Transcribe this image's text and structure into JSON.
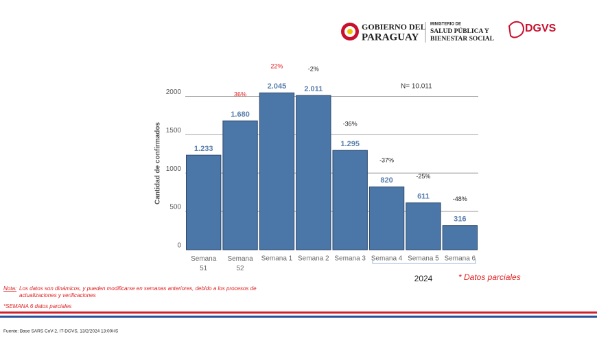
{
  "header": {
    "gov_line1": "GOBIERNO DEL",
    "gov_line2": "PARAGUAY",
    "ministry_line1": "MINISTERIO DE",
    "ministry_line2": "SALUD PÚBLICA Y",
    "ministry_line3": "BIENESTAR SOCIAL",
    "agency": "DGVS"
  },
  "chart_data": {
    "type": "bar",
    "y_label": "Cantidad de confirmados",
    "annotation": "N= 10.011",
    "categories": [
      "Semana 51",
      "Semana 52",
      "Semana 1",
      "Semana 2",
      "Semana 3",
      "Semana 4",
      "Semana 5",
      "Semana 6"
    ],
    "values": [
      1233,
      1680,
      2045,
      2011,
      1295,
      820,
      611,
      316
    ],
    "value_labels": [
      "1.233",
      "1.680",
      "2.045",
      "2.011",
      "1.295",
      "820",
      "611",
      "316"
    ],
    "change_labels": [
      null,
      "36%",
      "22%",
      "-2%",
      "-36%",
      "-37%",
      "-25%",
      "-48%"
    ],
    "change_colors": [
      null,
      "#e02020",
      "#e02020",
      "#222222",
      "#222222",
      "#222222",
      "#222222",
      "#222222"
    ],
    "color": "#4a76a8",
    "ylim": [
      0,
      2200
    ],
    "yticks": [
      0,
      500,
      1000,
      1500,
      2000
    ],
    "grid": true,
    "year_label": "2024",
    "partial_note": "* Datos parciales"
  },
  "notes": {
    "label": "Nota:",
    "text": " Los datos son dinámicos, y pueden modificarse en semanas anteriores, debido a los procesos de actualizaciones y verificaciones",
    "week_note": "*SEMANA 6 datos parciales"
  },
  "footer": {
    "source": "Fuente: Base SARS CoV-2, IT-DGVS, 13/2/2024 13:00HS"
  }
}
